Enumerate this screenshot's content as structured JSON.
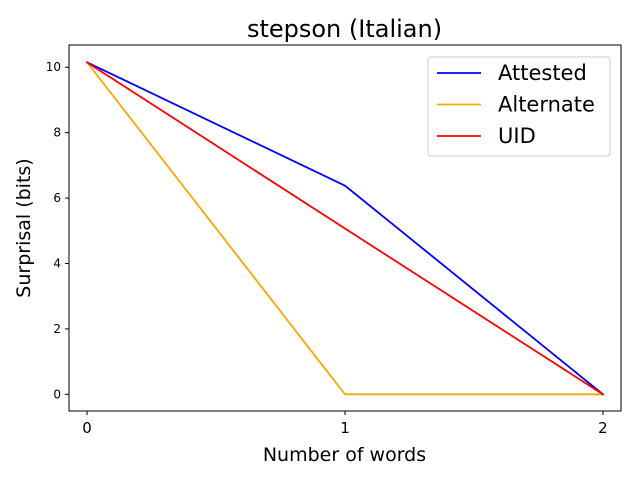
{
  "chart_data": {
    "type": "line",
    "title": "stepson (Italian)",
    "xlabel": "Number of words",
    "ylabel": "Surprisal (bits)",
    "x": [
      0,
      1,
      2
    ],
    "xlim": [
      -0.07,
      2.07
    ],
    "ylim": [
      -0.51,
      10.68
    ],
    "xticks": [
      0,
      1,
      2
    ],
    "yticks": [
      0,
      2,
      4,
      6,
      8,
      10
    ],
    "grid": false,
    "legend_position": "top-right",
    "series": [
      {
        "name": "Attested",
        "color": "#0000ff",
        "values": [
          10.15,
          6.38,
          0.0
        ]
      },
      {
        "name": "Alternate",
        "color": "#ffa500",
        "values": [
          10.15,
          0.0,
          0.0
        ]
      },
      {
        "name": "UID",
        "color": "#ff0000",
        "values": [
          10.15,
          5.07,
          0.0
        ]
      }
    ]
  }
}
